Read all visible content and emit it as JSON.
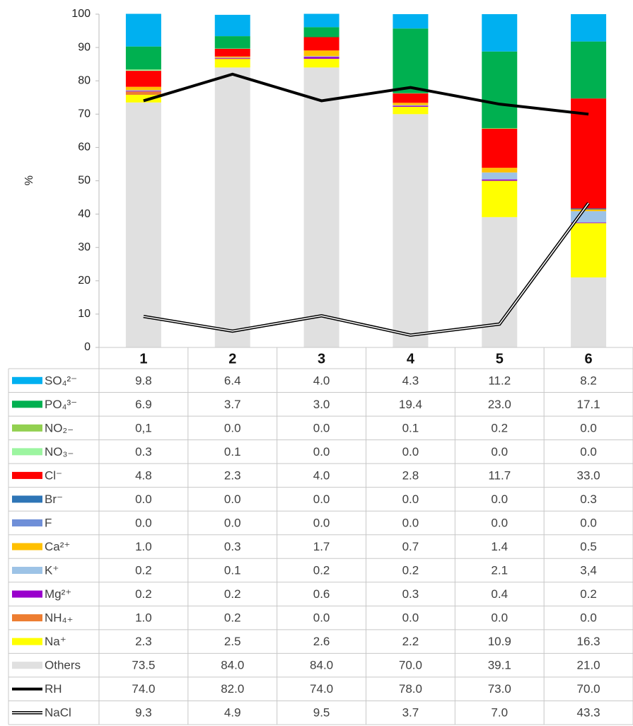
{
  "chart_data": {
    "type": "bar",
    "stacked": true,
    "ylabel": "%",
    "categories": [
      "1",
      "2",
      "3",
      "4",
      "5",
      "6"
    ],
    "ylim": [
      0,
      100
    ],
    "yticks": [
      0,
      10,
      20,
      30,
      40,
      50,
      60,
      70,
      80,
      90,
      100
    ],
    "series": [
      {
        "name": "SO₄²⁻",
        "color": "#00b0f0",
        "values": [
          9.8,
          6.4,
          4.0,
          4.3,
          11.2,
          8.2
        ],
        "value_labels": [
          "9.8",
          "6.4",
          "4.0",
          "4.3",
          "11.2",
          "8.2"
        ]
      },
      {
        "name": "PO₄³⁻",
        "color": "#00b050",
        "values": [
          6.9,
          3.7,
          3.0,
          19.4,
          23.0,
          17.1
        ],
        "value_labels": [
          "6.9",
          "3.7",
          "3.0",
          "19.4",
          "23.0",
          "17.1"
        ]
      },
      {
        "name": "NO₂₋",
        "color": "#92d050",
        "values": [
          0.1,
          0.0,
          0.0,
          0.1,
          0.2,
          0.0
        ],
        "value_labels": [
          "0,1",
          "0.0",
          "0.0",
          "0.1",
          "0.2",
          "0.0"
        ]
      },
      {
        "name": "NO₃₋",
        "color": "#9cf5a0",
        "values": [
          0.3,
          0.1,
          0.0,
          0.0,
          0.0,
          0.0
        ],
        "value_labels": [
          "0.3",
          "0.1",
          "0.0",
          "0.0",
          "0.0",
          "0.0"
        ]
      },
      {
        "name": "Cl⁻",
        "color": "#ff0000",
        "values": [
          4.8,
          2.3,
          4.0,
          2.8,
          11.7,
          33.0
        ],
        "value_labels": [
          "4.8",
          "2.3",
          "4.0",
          "2.8",
          "11.7",
          "33.0"
        ]
      },
      {
        "name": "Br⁻",
        "color": "#2e75b6",
        "values": [
          0.0,
          0.0,
          0.0,
          0.0,
          0.0,
          0.3
        ],
        "value_labels": [
          "0.0",
          "0.0",
          "0.0",
          "0.0",
          "0.0",
          "0.3"
        ]
      },
      {
        "name": "F",
        "color": "#6f8fd8",
        "values": [
          0.0,
          0.0,
          0.0,
          0.0,
          0.0,
          0.0
        ],
        "value_labels": [
          "0.0",
          "0.0",
          "0.0",
          "0.0",
          "0.0",
          "0.0"
        ]
      },
      {
        "name": "Ca²⁺",
        "color": "#ffc000",
        "values": [
          1.0,
          0.3,
          1.7,
          0.7,
          1.4,
          0.5
        ],
        "value_labels": [
          "1.0",
          "0.3",
          "1.7",
          "0.7",
          "1.4",
          "0.5"
        ]
      },
      {
        "name": "K⁺",
        "color": "#9dc3e6",
        "values": [
          0.2,
          0.1,
          0.2,
          0.2,
          2.1,
          3.4
        ],
        "value_labels": [
          "0.2",
          "0.1",
          "0.2",
          "0.2",
          "2.1",
          "3,4"
        ]
      },
      {
        "name": "Mg²⁺",
        "color": "#9900cc",
        "values": [
          0.2,
          0.2,
          0.6,
          0.3,
          0.4,
          0.2
        ],
        "value_labels": [
          "0.2",
          "0.2",
          "0.6",
          "0.3",
          "0.4",
          "0.2"
        ]
      },
      {
        "name": "NH₄₊",
        "color": "#ed7d31",
        "values": [
          1.0,
          0.2,
          0.0,
          0.0,
          0.0,
          0.0
        ],
        "value_labels": [
          "1.0",
          "0.2",
          "0.0",
          "0.0",
          "0.0",
          "0.0"
        ]
      },
      {
        "name": "Na⁺",
        "color": "#ffff00",
        "values": [
          2.3,
          2.5,
          2.6,
          2.2,
          10.9,
          16.3
        ],
        "value_labels": [
          "2.3",
          "2.5",
          "2.6",
          "2.2",
          "10.9",
          "16.3"
        ]
      },
      {
        "name": "Others",
        "color": "#e0e0e0",
        "values": [
          73.5,
          84.0,
          84.0,
          70.0,
          39.1,
          21.0
        ],
        "value_labels": [
          "73.5",
          "84.0",
          "84.0",
          "70.0",
          "39.1",
          "21.0"
        ]
      },
      {
        "name": "RH",
        "type": "line",
        "color": "#000000",
        "values": [
          74.0,
          82.0,
          74.0,
          78.0,
          73.0,
          70.0
        ],
        "value_labels": [
          "74.0",
          "82.0",
          "74.0",
          "78.0",
          "73.0",
          "70.0"
        ]
      },
      {
        "name": "NaCl",
        "type": "line",
        "double": true,
        "color": "#000000",
        "values": [
          9.3,
          4.9,
          9.5,
          3.7,
          7.0,
          43.3
        ],
        "value_labels": [
          "9.3",
          "4.9",
          "9.5",
          "3.7",
          "7.0",
          "43.3"
        ]
      }
    ]
  }
}
